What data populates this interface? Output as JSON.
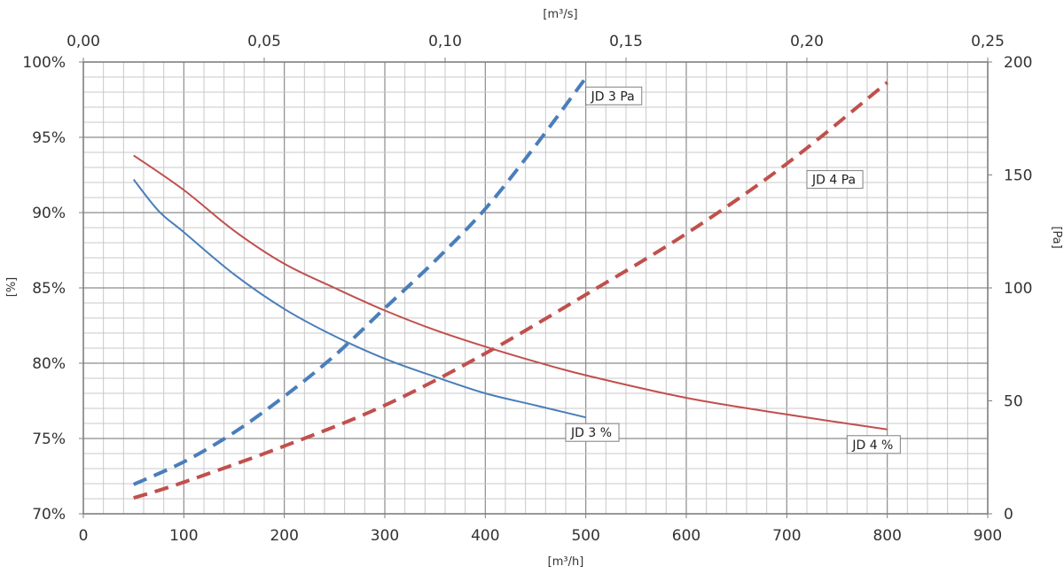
{
  "chart_data": {
    "type": "line",
    "x_bottom": {
      "label": "[m³/h]",
      "range": [
        0,
        900
      ],
      "ticks": [
        "0",
        "100",
        "200",
        "300",
        "400",
        "500",
        "600",
        "700",
        "800",
        "900"
      ]
    },
    "x_top": {
      "label": "[m³/s]",
      "range": [
        0,
        0.25
      ],
      "ticks": [
        "0,00",
        "0,05",
        "0,10",
        "0,15",
        "0,20",
        "0,25"
      ]
    },
    "y_left": {
      "label": "[%]",
      "range": [
        70,
        100
      ],
      "ticks": [
        "70%",
        "75%",
        "80%",
        "85%",
        "90%",
        "95%",
        "100%"
      ]
    },
    "y_right": {
      "label": "[Pa]",
      "range": [
        0,
        200
      ],
      "ticks": [
        "0",
        "50",
        "100",
        "150",
        "200"
      ]
    },
    "grid": true,
    "series": [
      {
        "name": "JD 3 %",
        "axis": "left",
        "style": "solid",
        "color": "#4a7ebb",
        "x": [
          50,
          75,
          100,
          150,
          200,
          250,
          300,
          350,
          400,
          450,
          500
        ],
        "y": [
          92.2,
          90.1,
          88.7,
          85.9,
          83.6,
          81.8,
          80.3,
          79.1,
          78.0,
          77.2,
          76.4
        ]
      },
      {
        "name": "JD 4 %",
        "axis": "left",
        "style": "solid",
        "color": "#c0504d",
        "x": [
          50,
          100,
          150,
          200,
          250,
          300,
          350,
          400,
          450,
          500,
          600,
          700,
          800
        ],
        "y": [
          93.8,
          91.5,
          88.8,
          86.6,
          85.0,
          83.5,
          82.2,
          81.1,
          80.1,
          79.2,
          77.7,
          76.6,
          75.6
        ]
      },
      {
        "name": "JD 3 Pa",
        "axis": "right",
        "style": "dashed",
        "color": "#4a7ebb",
        "x": [
          50,
          100,
          150,
          200,
          250,
          300,
          350,
          400,
          450,
          500
        ],
        "y": [
          13,
          23,
          36,
          52,
          70,
          91,
          112,
          135,
          163,
          193
        ]
      },
      {
        "name": "JD 4 Pa",
        "axis": "right",
        "style": "dashed",
        "color": "#c0504d",
        "x": [
          50,
          100,
          200,
          300,
          400,
          500,
          600,
          700,
          800
        ],
        "y": [
          7,
          14,
          30,
          48,
          71,
          97,
          124,
          155,
          191
        ]
      }
    ],
    "annotations": [
      {
        "text": "JD 3  Pa",
        "series": "JD 3 Pa",
        "at_x": 500,
        "at_y_right": 185
      },
      {
        "text": "JD 4  Pa",
        "series": "JD 4 Pa",
        "at_x": 720,
        "at_y_right": 148
      },
      {
        "text": "JD 3  %",
        "series": "JD 3 %",
        "at_x": 480,
        "at_y_left": 75.4
      },
      {
        "text": "JD 4  %",
        "series": "JD 4 %",
        "at_x": 760,
        "at_y_left": 74.6
      }
    ]
  }
}
